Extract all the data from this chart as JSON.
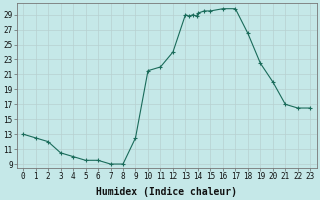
{
  "x": [
    0,
    1,
    2,
    3,
    4,
    5,
    6,
    7,
    8,
    9,
    10,
    11,
    12,
    13,
    13.3,
    13.6,
    13.9,
    14,
    14.5,
    15,
    16,
    17,
    18,
    19,
    20,
    21,
    22,
    23
  ],
  "y": [
    13,
    12.5,
    12,
    10.5,
    10,
    9.5,
    9.5,
    9,
    9,
    12.5,
    21.5,
    22,
    24,
    29,
    28.8,
    29.0,
    28.8,
    29.2,
    29.5,
    29.5,
    29.8,
    29.8,
    26.5,
    22.5,
    20,
    17,
    16.5,
    16.5
  ],
  "line_color": "#1a6b5a",
  "marker": "+",
  "marker_size": 3.0,
  "bg_color": "#c5e8e8",
  "grid_color": "#b0d8d8",
  "xlabel": "Humidex (Indice chaleur)",
  "xlim": [
    -0.5,
    23.5
  ],
  "ylim": [
    8.5,
    30.5
  ],
  "yticks": [
    9,
    11,
    13,
    15,
    17,
    19,
    21,
    23,
    25,
    27,
    29
  ],
  "xticks": [
    0,
    1,
    2,
    3,
    4,
    5,
    6,
    7,
    8,
    9,
    10,
    11,
    12,
    13,
    14,
    15,
    16,
    17,
    18,
    19,
    20,
    21,
    22,
    23
  ],
  "tick_label_fontsize": 5.5,
  "xlabel_fontsize": 7.0,
  "linewidth": 0.8,
  "marker_color": "#1a6b5a"
}
